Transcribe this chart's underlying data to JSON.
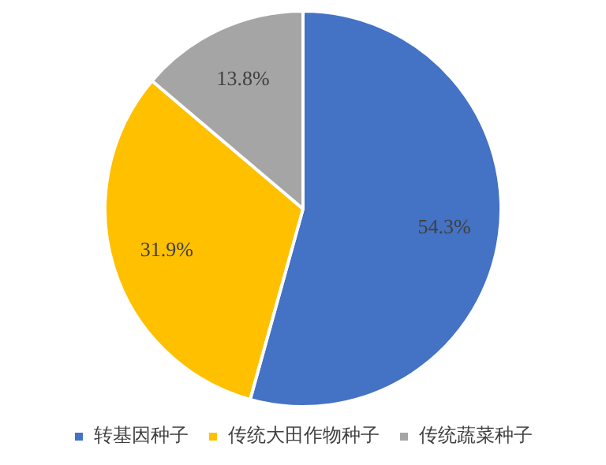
{
  "chart_data": {
    "type": "pie",
    "categories": [
      "转基因种子",
      "传统大田作物种子",
      "传统蔬菜种子"
    ],
    "values": [
      54.3,
      31.9,
      13.8
    ],
    "colors": [
      "#4472c4",
      "#ffc000",
      "#a5a5a5"
    ],
    "value_labels": [
      "54.3%",
      "31.9%",
      "13.8%"
    ],
    "legend": "bottom"
  }
}
